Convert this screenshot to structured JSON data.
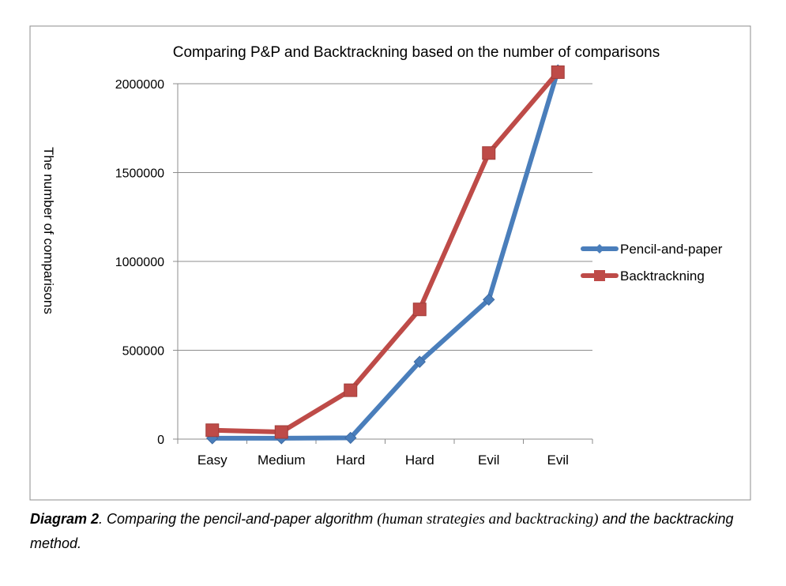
{
  "chart_data": {
    "type": "line",
    "title": "Comparing  P&P and Backtrackning based on the number of comparisons",
    "ylabel": "The number of comparisons",
    "categories": [
      "Easy",
      "Medium",
      "Hard",
      "Hard",
      "Evil",
      "Evil"
    ],
    "y_ticks": [
      "0",
      "500000",
      "1000000",
      "1500000",
      "2000000"
    ],
    "ylim": [
      0,
      2000000
    ],
    "grid": true,
    "legend_position": "right",
    "series": [
      {
        "name": "Pencil-and-paper",
        "values": [
          5000,
          5000,
          7000,
          435000,
          785000,
          2075000
        ],
        "color": "#4a7ebb",
        "marker": "diamond"
      },
      {
        "name": "Backtrackning",
        "values": [
          50000,
          40000,
          275000,
          730000,
          1610000,
          2065000
        ],
        "color": "#be4b48",
        "marker": "square"
      }
    ]
  },
  "caption": {
    "label": "Diagram 2",
    "text_part1": ". Comparing the pencil-and-paper algorithm ",
    "text_serif": "(human strategies and backtracking)",
    "text_part2": " and the backtracking method."
  }
}
